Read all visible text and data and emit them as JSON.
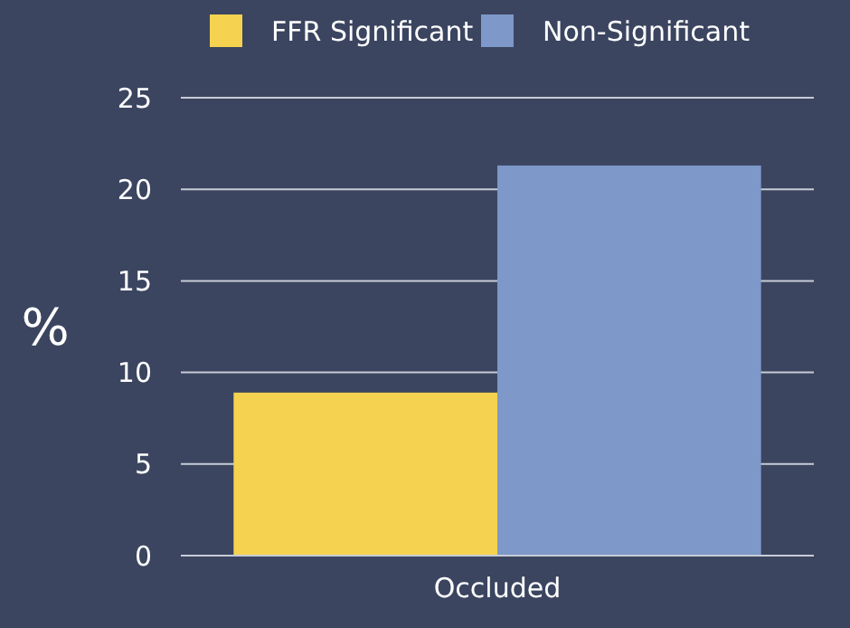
{
  "chart_data": {
    "type": "bar",
    "ylabel": "%",
    "categories": [
      "Occluded"
    ],
    "series": [
      {
        "name": "FFR Significant",
        "color": "#f5d24f",
        "values": [
          8.9
        ]
      },
      {
        "name": "Non-Significant",
        "color": "#7d98c9",
        "values": [
          21.3
        ]
      }
    ],
    "ylim": [
      0,
      25
    ],
    "yticks": [
      0,
      5,
      10,
      15,
      20,
      25
    ],
    "grid": "y",
    "legend": "top"
  }
}
